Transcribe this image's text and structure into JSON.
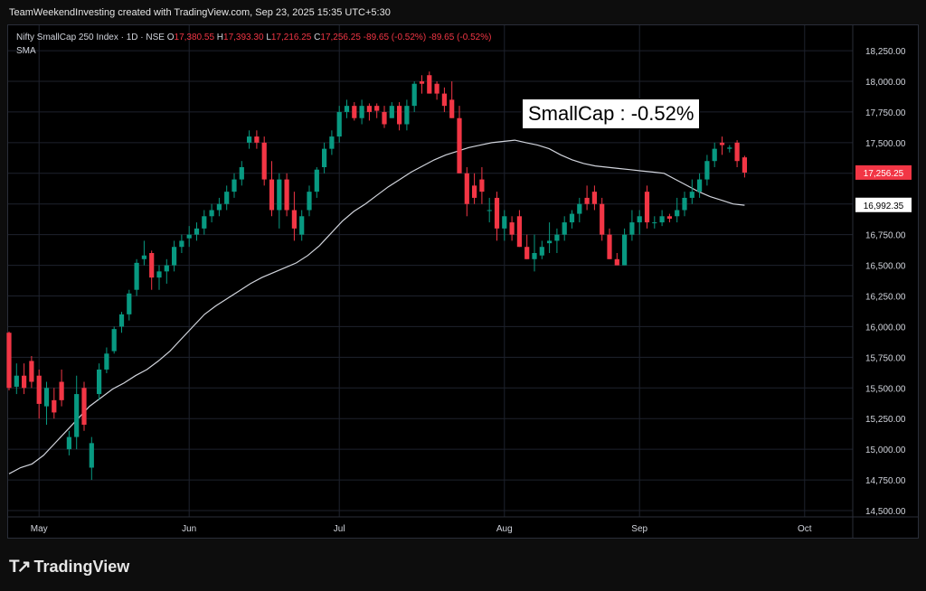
{
  "credit": "TeamWeekendInvesting created with TradingView.com, Sep 23, 2025 15:35 UTC+5:30",
  "legend": {
    "symbol": "Nifty SmallCap 250 Index · 1D · NSE",
    "o_label": "O",
    "o_value": "17,380.55",
    "h_label": "H",
    "h_value": "17,393.30",
    "l_label": "L",
    "l_value": "17,216.25",
    "c_label": "C",
    "c_value": "17,256.25",
    "change": "-89.65 (-0.52%)",
    "change2": "-89.65 (-0.52%)",
    "indicator": "SMA"
  },
  "callout": "SmallCap : -0.52%",
  "brand": "TradingView",
  "colors": {
    "up": "#089981",
    "down": "#f23645",
    "sma": "#d1d4dc",
    "grid": "#1e222d"
  },
  "chart_data": {
    "type": "candlestick",
    "y_ticks": [
      14500,
      14750,
      15000,
      15250,
      15500,
      15750,
      16000,
      16250,
      16500,
      16750,
      17000,
      17250,
      17500,
      17750,
      18000,
      18250
    ],
    "y_tick_labels": [
      "14,500.00",
      "14,750.00",
      "15,000.00",
      "15,250.00",
      "15,500.00",
      "15,750.00",
      "16,000.00",
      "16,250.00",
      "16,500.00",
      "16,750.00",
      "17,000.00",
      "17,250.00",
      "17,500.00",
      "17,750.00",
      "18,000.00",
      "18,250.00"
    ],
    "ylim": [
      14400,
      18350
    ],
    "x_labels": [
      {
        "label": "May",
        "index": 4
      },
      {
        "label": "Jun",
        "index": 24
      },
      {
        "label": "Jul",
        "index": 44
      },
      {
        "label": "Aug",
        "index": 66
      },
      {
        "label": "Sep",
        "index": 84
      },
      {
        "label": "Oct",
        "index": 106
      }
    ],
    "last_price_label": "17,256.25",
    "sma_label": "16,992.35",
    "last_price": 17256.25,
    "sma_value": 16992.35,
    "candles": [
      [
        15950,
        15960,
        15480,
        15500
      ],
      [
        15510,
        15700,
        15450,
        15600
      ],
      [
        15600,
        15700,
        15450,
        15500
      ],
      [
        15720,
        15760,
        15500,
        15550
      ],
      [
        15600,
        15650,
        15250,
        15370
      ],
      [
        15350,
        15550,
        15200,
        15500
      ],
      [
        15400,
        15500,
        15250,
        15300
      ],
      [
        15550,
        15650,
        15350,
        15400
      ],
      [
        15000,
        15150,
        14950,
        15100
      ],
      [
        15100,
        15600,
        15000,
        15450
      ],
      [
        15500,
        15550,
        15150,
        15200
      ],
      [
        14850,
        15100,
        14750,
        15050
      ],
      [
        15450,
        15700,
        15400,
        15650
      ],
      [
        15650,
        15830,
        15620,
        15780
      ],
      [
        15800,
        16000,
        15780,
        15980
      ],
      [
        16000,
        16120,
        15950,
        16100
      ],
      [
        16100,
        16300,
        16050,
        16270
      ],
      [
        16300,
        16550,
        16250,
        16520
      ],
      [
        16550,
        16700,
        16500,
        16580
      ],
      [
        16600,
        16620,
        16300,
        16400
      ],
      [
        16400,
        16500,
        16300,
        16450
      ],
      [
        16450,
        16550,
        16350,
        16500
      ],
      [
        16500,
        16700,
        16450,
        16650
      ],
      [
        16650,
        16750,
        16600,
        16700
      ],
      [
        16720,
        16820,
        16650,
        16750
      ],
      [
        16750,
        16850,
        16700,
        16800
      ],
      [
        16800,
        16950,
        16750,
        16900
      ],
      [
        16900,
        17000,
        16850,
        16950
      ],
      [
        16950,
        17050,
        16900,
        17000
      ],
      [
        17000,
        17150,
        16950,
        17100
      ],
      [
        17100,
        17250,
        17050,
        17200
      ],
      [
        17200,
        17350,
        17150,
        17300
      ],
      [
        17500,
        17600,
        17450,
        17550
      ],
      [
        17550,
        17600,
        17450,
        17500
      ],
      [
        17500,
        17550,
        17150,
        17200
      ],
      [
        17200,
        17350,
        16900,
        16950
      ],
      [
        16950,
        17250,
        16800,
        17200
      ],
      [
        17200,
        17250,
        16900,
        16950
      ],
      [
        16950,
        17100,
        16700,
        16800
      ],
      [
        16750,
        16950,
        16700,
        16900
      ],
      [
        16950,
        17150,
        16900,
        17100
      ],
      [
        17100,
        17300,
        17050,
        17280
      ],
      [
        17300,
        17500,
        17250,
        17450
      ],
      [
        17450,
        17600,
        17400,
        17550
      ],
      [
        17550,
        17800,
        17500,
        17750
      ],
      [
        17750,
        17850,
        17700,
        17800
      ],
      [
        17800,
        17830,
        17680,
        17700
      ],
      [
        17700,
        17850,
        17650,
        17800
      ],
      [
        17800,
        17820,
        17680,
        17750
      ],
      [
        17800,
        17820,
        17700,
        17760
      ],
      [
        17750,
        17800,
        17620,
        17650
      ],
      [
        17700,
        17830,
        17700,
        17800
      ],
      [
        17800,
        17830,
        17600,
        17650
      ],
      [
        17650,
        17850,
        17600,
        17800
      ],
      [
        17800,
        18000,
        17750,
        17980
      ],
      [
        18000,
        18050,
        17900,
        17980
      ],
      [
        18050,
        18080,
        17900,
        17900
      ],
      [
        17980,
        18000,
        17850,
        17900
      ],
      [
        17900,
        17950,
        17750,
        17800
      ],
      [
        17850,
        18000,
        17700,
        17700
      ],
      [
        17700,
        17800,
        17250,
        17250
      ],
      [
        17250,
        17300,
        16900,
        17000
      ],
      [
        17150,
        17250,
        17000,
        17050
      ],
      [
        17200,
        17300,
        17000,
        17100
      ],
      [
        16950,
        17050,
        16850,
        16950
      ],
      [
        17050,
        17100,
        16700,
        16800
      ],
      [
        16800,
        16950,
        16700,
        16900
      ],
      [
        16850,
        16900,
        16700,
        16750
      ],
      [
        16900,
        16950,
        16650,
        16650
      ],
      [
        16650,
        16750,
        16550,
        16550
      ],
      [
        16550,
        16750,
        16450,
        16600
      ],
      [
        16580,
        16700,
        16550,
        16650
      ],
      [
        16680,
        16850,
        16600,
        16700
      ],
      [
        16700,
        16800,
        16600,
        16750
      ],
      [
        16750,
        16900,
        16700,
        16850
      ],
      [
        16850,
        16950,
        16800,
        16920
      ],
      [
        16920,
        17050,
        16850,
        17000
      ],
      [
        17050,
        17150,
        16950,
        17000
      ],
      [
        17100,
        17150,
        16950,
        17000
      ],
      [
        17000,
        17050,
        16700,
        16750
      ],
      [
        16750,
        16800,
        16550,
        16550
      ],
      [
        16550,
        16600,
        16500,
        16500
      ],
      [
        16500,
        16800,
        16500,
        16750
      ],
      [
        16750,
        16950,
        16700,
        16850
      ],
      [
        16850,
        16950,
        16750,
        16900
      ],
      [
        17100,
        17150,
        16800,
        16850
      ],
      [
        16850,
        16900,
        16800,
        16850
      ],
      [
        16850,
        16950,
        16820,
        16900
      ],
      [
        16900,
        16920,
        16850,
        16880
      ],
      [
        16900,
        17050,
        16850,
        16950
      ],
      [
        16950,
        17100,
        16900,
        17050
      ],
      [
        17050,
        17200,
        17000,
        17100
      ],
      [
        17100,
        17250,
        17050,
        17200
      ],
      [
        17200,
        17400,
        17150,
        17350
      ],
      [
        17350,
        17500,
        17300,
        17450
      ],
      [
        17500,
        17550,
        17400,
        17480
      ],
      [
        17450,
        17480,
        17420,
        17460
      ],
      [
        17500,
        17520,
        17300,
        17350
      ],
      [
        17380,
        17393,
        17216,
        17256
      ]
    ],
    "sma": [
      14800,
      14850,
      14880,
      14950,
      15050,
      15150,
      15250,
      15350,
      15420,
      15490,
      15540,
      15600,
      15650,
      15720,
      15800,
      15900,
      16000,
      16100,
      16170,
      16230,
      16290,
      16350,
      16400,
      16440,
      16480,
      16520,
      16580,
      16660,
      16760,
      16860,
      16940,
      17000,
      17070,
      17140,
      17200,
      17260,
      17310,
      17360,
      17400,
      17430,
      17460,
      17480,
      17500,
      17510,
      17520,
      17500,
      17480,
      17450,
      17400,
      17360,
      17330,
      17310,
      17300,
      17290,
      17280,
      17270,
      17260,
      17250,
      17200,
      17150,
      17100,
      17060,
      17030,
      17000,
      16990
    ]
  }
}
